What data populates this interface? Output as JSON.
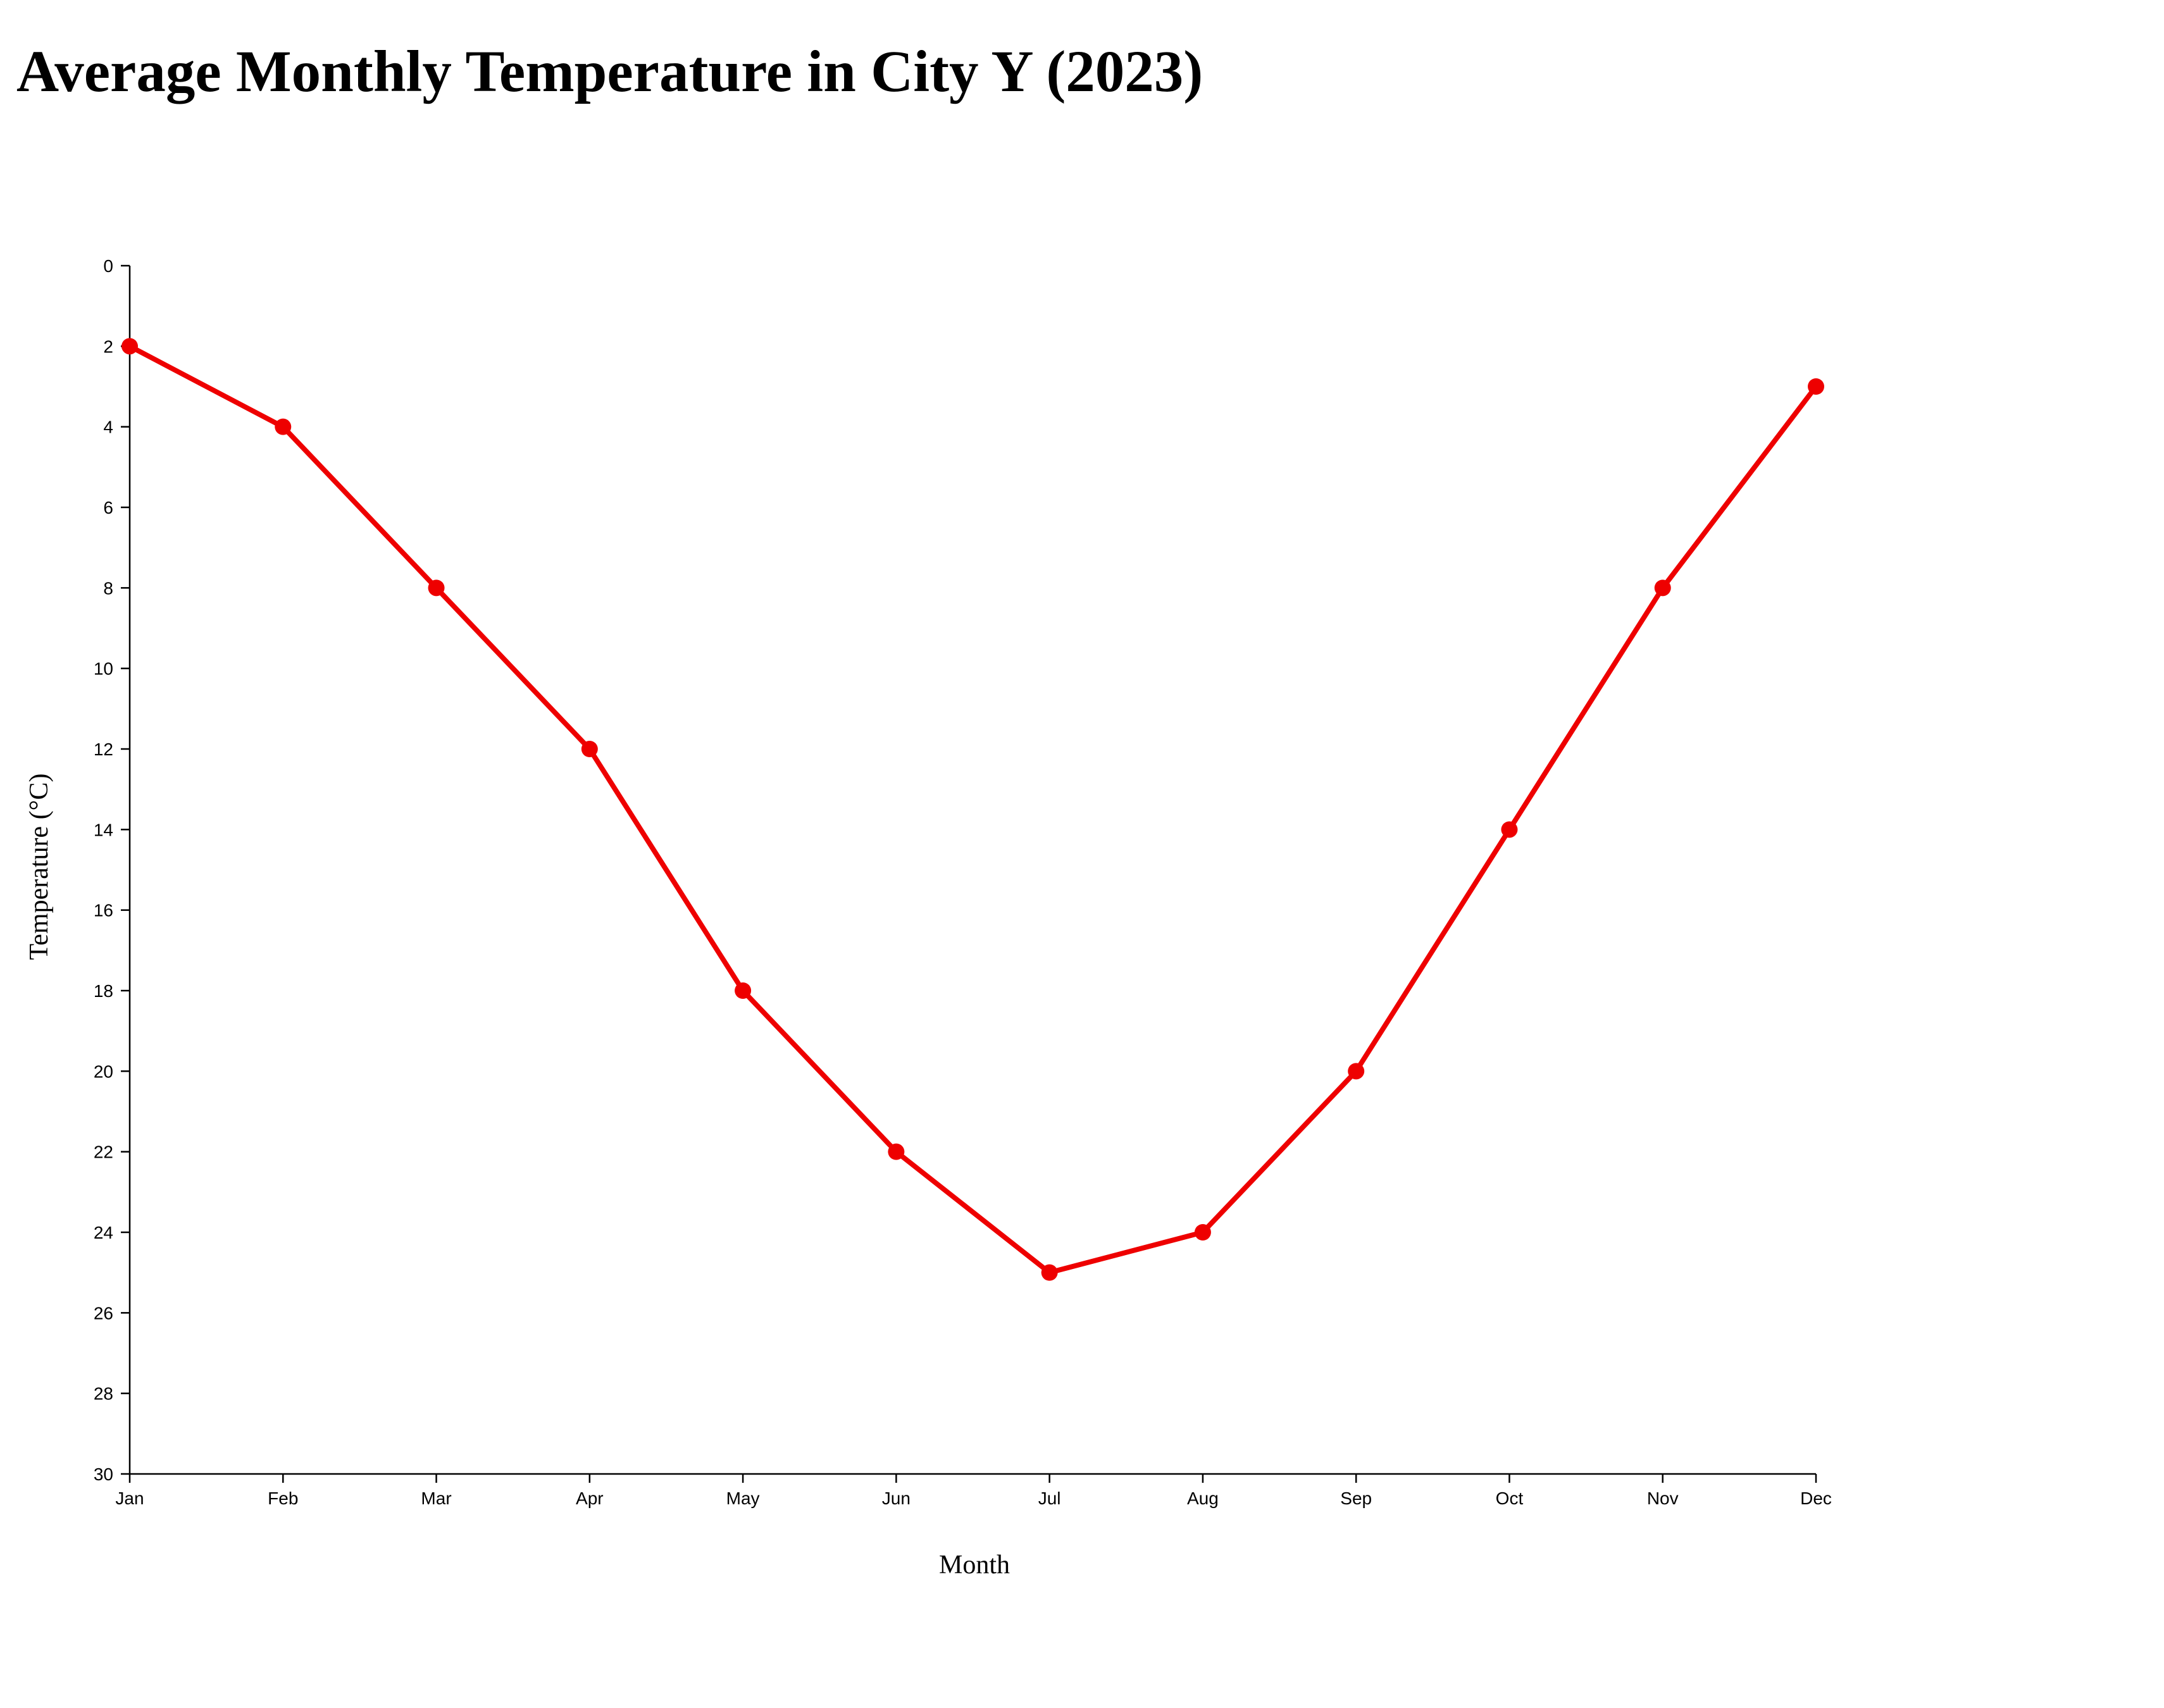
{
  "chart_data": {
    "type": "line",
    "title": "Average Monthly Temperature in City Y (2023)",
    "xlabel": "Month",
    "ylabel": "Temperature (°C)",
    "categories": [
      "Jan",
      "Feb",
      "Mar",
      "Apr",
      "May",
      "Jun",
      "Jul",
      "Aug",
      "Sep",
      "Oct",
      "Nov",
      "Dec"
    ],
    "values": [
      2,
      4,
      8,
      12,
      18,
      22,
      25,
      24,
      20,
      14,
      8,
      3
    ],
    "ylim": [
      0,
      30
    ],
    "y_axis_inverted": true,
    "y_ticks": [
      0,
      2,
      4,
      6,
      8,
      10,
      12,
      14,
      16,
      18,
      20,
      22,
      24,
      26,
      28,
      30
    ],
    "grid": false,
    "legend": "none",
    "line_color": "#ee0000",
    "marker_color": "#ee0000"
  }
}
